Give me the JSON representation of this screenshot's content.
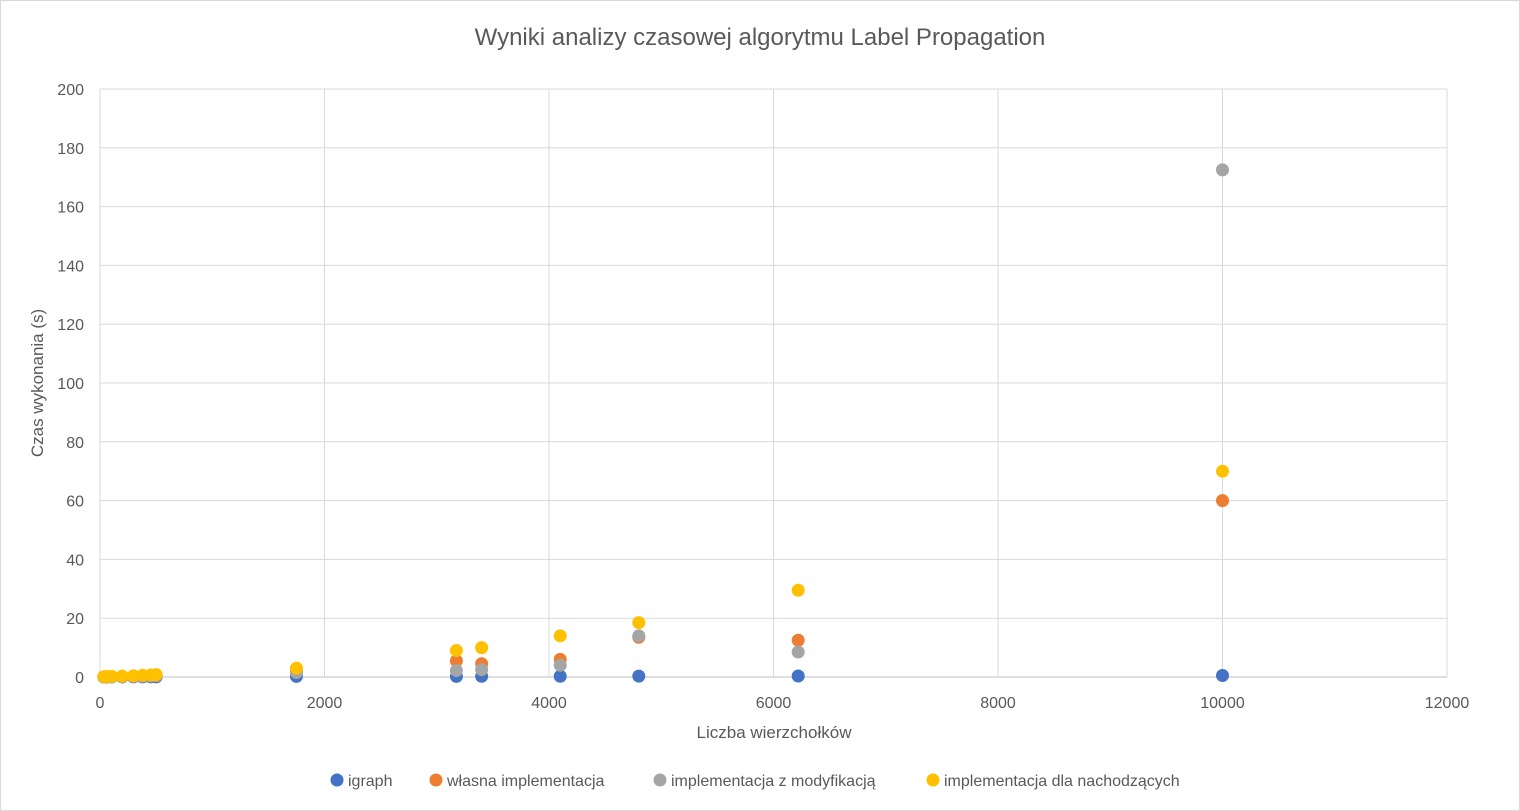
{
  "chart_data": {
    "type": "scatter",
    "title": "Wyniki analizy czasowej algorytmu Label Propagation",
    "xlabel": "Liczba wierzchołków",
    "ylabel": "Czas wykonania (s)",
    "xlim": [
      0,
      12000
    ],
    "ylim": [
      0,
      200
    ],
    "xticks": [
      "0",
      "2000",
      "4000",
      "6000",
      "8000",
      "10000",
      "12000"
    ],
    "yticks": [
      "0",
      "20",
      "40",
      "60",
      "80",
      "100",
      "120",
      "140",
      "160",
      "180",
      "200"
    ],
    "grid": true,
    "legend_position": "bottom",
    "series": [
      {
        "name": "igraph",
        "color": "#4472C4",
        "points": [
          [
            34,
            0.01
          ],
          [
            62,
            0.01
          ],
          [
            105,
            0.02
          ],
          [
            198,
            0.02
          ],
          [
            297,
            0.03
          ],
          [
            379,
            0.04
          ],
          [
            453,
            0.05
          ],
          [
            500,
            0.05
          ],
          [
            1750,
            0.2
          ],
          [
            3175,
            0.2
          ],
          [
            3400,
            0.25
          ],
          [
            4100,
            0.25
          ],
          [
            4800,
            0.3
          ],
          [
            6220,
            0.35
          ],
          [
            10000,
            0.5
          ]
        ]
      },
      {
        "name": "własna implementacja",
        "color": "#ED7D31",
        "points": [
          [
            34,
            0.05
          ],
          [
            62,
            0.06
          ],
          [
            105,
            0.08
          ],
          [
            198,
            0.12
          ],
          [
            297,
            0.2
          ],
          [
            379,
            0.3
          ],
          [
            453,
            0.35
          ],
          [
            500,
            0.4
          ],
          [
            1750,
            2
          ],
          [
            3175,
            5.5
          ],
          [
            3400,
            4.5
          ],
          [
            4100,
            6
          ],
          [
            4800,
            13.5
          ],
          [
            6220,
            12.5
          ],
          [
            10000,
            60
          ]
        ]
      },
      {
        "name": "implementacja z modyfikacją",
        "color": "#A5A5A5",
        "points": [
          [
            34,
            0.05
          ],
          [
            62,
            0.06
          ],
          [
            105,
            0.08
          ],
          [
            198,
            0.15
          ],
          [
            297,
            0.25
          ],
          [
            379,
            0.3
          ],
          [
            453,
            0.4
          ],
          [
            500,
            0.45
          ],
          [
            1750,
            1.5
          ],
          [
            3175,
            2.2
          ],
          [
            3400,
            2.5
          ],
          [
            4100,
            4
          ],
          [
            4800,
            14
          ],
          [
            6220,
            8.5
          ],
          [
            10000,
            172.5
          ]
        ]
      },
      {
        "name": "implementacja dla nachodzących",
        "color": "#FFC000",
        "points": [
          [
            34,
            0.1
          ],
          [
            62,
            0.15
          ],
          [
            105,
            0.2
          ],
          [
            198,
            0.3
          ],
          [
            297,
            0.4
          ],
          [
            379,
            0.6
          ],
          [
            453,
            0.7
          ],
          [
            500,
            0.8
          ],
          [
            1750,
            3
          ],
          [
            3175,
            9
          ],
          [
            3400,
            10
          ],
          [
            4100,
            14
          ],
          [
            4800,
            18.5
          ],
          [
            6220,
            29.5
          ],
          [
            10000,
            70
          ]
        ]
      }
    ]
  }
}
